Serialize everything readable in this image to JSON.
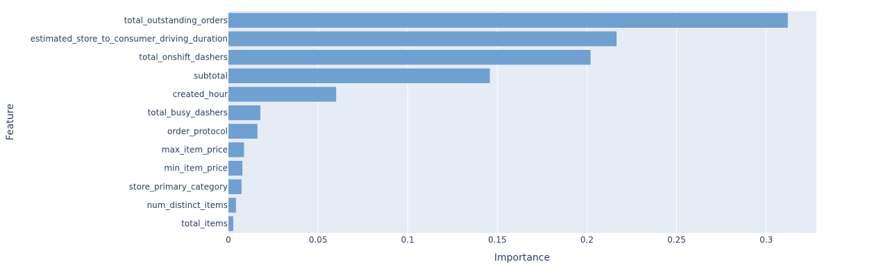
{
  "chart_data": {
    "type": "bar",
    "orientation": "horizontal",
    "xlabel": "Importance",
    "ylabel": "Feature",
    "xlim": [
      0,
      0.328
    ],
    "xticks": [
      0,
      0.05,
      0.1,
      0.15,
      0.2,
      0.25,
      0.3
    ],
    "xtick_labels": [
      "0",
      "0.05",
      "0.1",
      "0.15",
      "0.2",
      "0.25",
      "0.3"
    ],
    "grid": true,
    "categories": [
      "total_outstanding_orders",
      "estimated_store_to_consumer_driving_duration",
      "total_onshift_dashers",
      "subtotal",
      "created_hour",
      "total_busy_dashers",
      "order_protocol",
      "max_item_price",
      "min_item_price",
      "store_primary_category",
      "num_distinct_items",
      "total_items"
    ],
    "values": [
      0.312,
      0.2165,
      0.202,
      0.1458,
      0.0601,
      0.0178,
      0.0162,
      0.0087,
      0.0078,
      0.0073,
      0.0042,
      0.0027
    ],
    "colors": {
      "bar": "#6fa0d0",
      "plot_bg": "#e5ecf6",
      "grid": "#ffffff",
      "text": "#2a3f5f"
    }
  }
}
